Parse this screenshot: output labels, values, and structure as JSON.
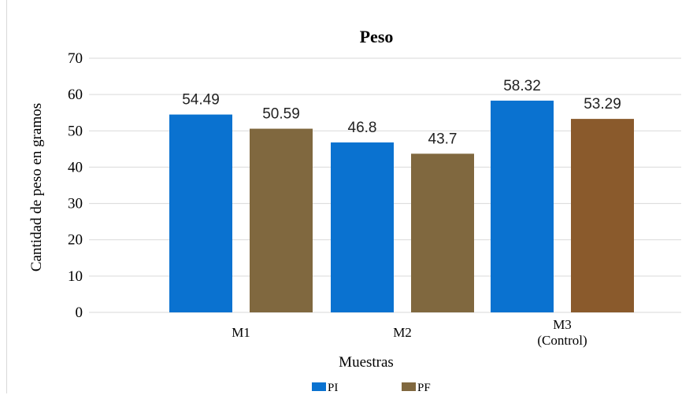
{
  "chart_data": {
    "type": "bar",
    "title": "Peso",
    "xlabel": "Muestras",
    "ylabel": "Cantidad de peso en gramos",
    "categories": [
      [
        "M1"
      ],
      [
        "M2"
      ],
      [
        "M3",
        "(Control)"
      ]
    ],
    "series": [
      {
        "name": "PI",
        "values": [
          54.49,
          46.8,
          58.32
        ],
        "labels": [
          "54.49",
          "46.8",
          "58.32"
        ],
        "colors": [
          "#0a72d0",
          "#0a72d0",
          "#0a72d0"
        ]
      },
      {
        "name": "PF",
        "values": [
          50.59,
          43.7,
          53.29
        ],
        "labels": [
          "50.59",
          "43.7",
          "53.29"
        ],
        "colors": [
          "#80683f",
          "#80683f",
          "#8a5a2c"
        ]
      }
    ],
    "ylim": [
      0,
      70
    ],
    "yticks": [
      0,
      10,
      20,
      30,
      40,
      50,
      60,
      70
    ],
    "grid": true,
    "legend": "bottom"
  }
}
